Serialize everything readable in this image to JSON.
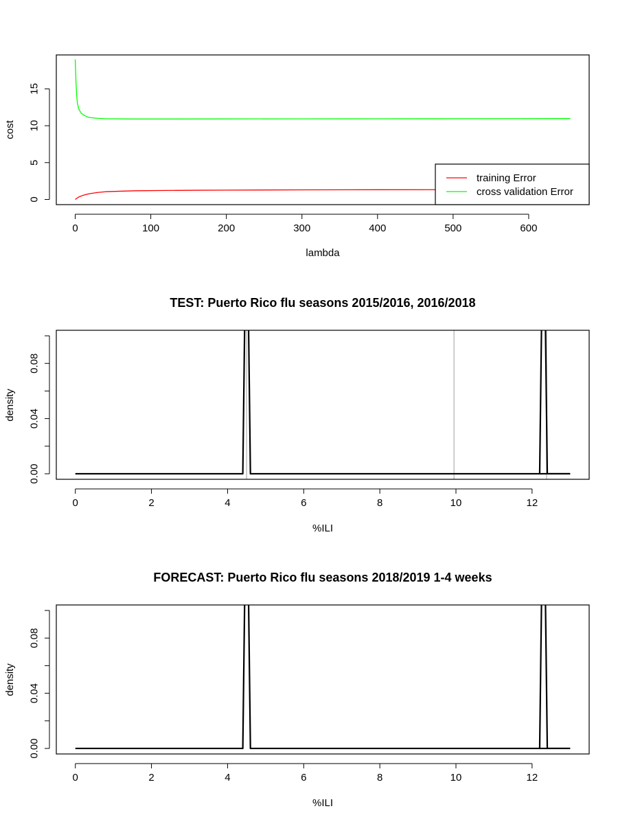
{
  "chart_data": [
    {
      "type": "line",
      "title": "",
      "xlabel": "lambda",
      "ylabel": "cost",
      "xlim": [
        -25,
        680
      ],
      "ylim": [
        -0.7,
        19.6
      ],
      "x_ticks": [
        0,
        100,
        200,
        300,
        400,
        500,
        600
      ],
      "y_ticks": [
        0,
        5,
        10,
        15
      ],
      "legend": {
        "position": "bottom-right",
        "entries": [
          "training Error",
          "cross validation Error"
        ]
      },
      "series": [
        {
          "name": "training Error",
          "color": "#ff0000",
          "x": [
            0,
            2,
            5,
            10,
            15,
            20,
            30,
            40,
            60,
            80,
            120,
            160,
            200,
            300,
            400,
            500,
            600,
            655
          ],
          "y": [
            0.0,
            0.15,
            0.35,
            0.55,
            0.7,
            0.8,
            0.95,
            1.05,
            1.12,
            1.18,
            1.22,
            1.25,
            1.27,
            1.3,
            1.32,
            1.33,
            1.34,
            1.35
          ]
        },
        {
          "name": "cross validation Error",
          "color": "#00ff00",
          "x": [
            0,
            1,
            2,
            3,
            5,
            8,
            12,
            16,
            20,
            30,
            40,
            60,
            80,
            120,
            200,
            300,
            400,
            500,
            600,
            655
          ],
          "y": [
            19.0,
            16.0,
            14.0,
            13.0,
            12.2,
            11.7,
            11.4,
            11.2,
            11.1,
            11.0,
            10.95,
            10.92,
            10.91,
            10.91,
            10.92,
            10.93,
            10.94,
            10.95,
            10.96,
            10.97
          ]
        }
      ]
    },
    {
      "type": "line",
      "title": "TEST: Puerto Rico  flu seasons 2015/2016, 2016/2018",
      "xlabel": "%ILI",
      "ylabel": "density",
      "xlim": [
        -0.5,
        13.5
      ],
      "ylim": [
        -0.004,
        0.104
      ],
      "x_ticks": [
        0,
        2,
        4,
        6,
        8,
        10,
        12
      ],
      "y_ticks": [
        0.0,
        0.04,
        0.08
      ],
      "y_tick_labels": [
        "0.00",
        "0.04",
        "0.08"
      ],
      "y_minor_ticks": [
        0.02,
        0.06,
        0.1
      ],
      "vertical_lines": {
        "color": "#bebebe",
        "x": [
          4.5,
          9.95,
          12.38
        ]
      },
      "series": [
        {
          "color": "#000000",
          "x": [
            0,
            4.4,
            4.45,
            4.55,
            4.6,
            13.0
          ],
          "y": [
            0,
            0,
            0.11,
            0.11,
            0,
            0
          ]
        },
        {
          "color": "#000000",
          "x": [
            12.2,
            12.25,
            12.35,
            12.4,
            13.0
          ],
          "y": [
            0,
            0.11,
            0.11,
            0,
            0
          ]
        }
      ]
    },
    {
      "type": "line",
      "title": "FORECAST: Puerto Rico flu seasons 2018/2019 1-4 weeks",
      "xlabel": "%ILI",
      "ylabel": "density",
      "xlim": [
        -0.5,
        13.5
      ],
      "ylim": [
        -0.004,
        0.104
      ],
      "x_ticks": [
        0,
        2,
        4,
        6,
        8,
        10,
        12
      ],
      "y_ticks": [
        0.0,
        0.04,
        0.08
      ],
      "y_tick_labels": [
        "0.00",
        "0.04",
        "0.08"
      ],
      "y_minor_ticks": [
        0.02,
        0.06,
        0.1
      ],
      "series": [
        {
          "color": "#000000",
          "x": [
            0,
            4.4,
            4.45,
            4.55,
            4.6,
            13.0
          ],
          "y": [
            0,
            0,
            0.11,
            0.11,
            0,
            0
          ]
        },
        {
          "color": "#000000",
          "x": [
            12.2,
            12.25,
            12.35,
            12.4,
            13.0
          ],
          "y": [
            0,
            0.11,
            0.11,
            0,
            0
          ]
        }
      ]
    }
  ]
}
